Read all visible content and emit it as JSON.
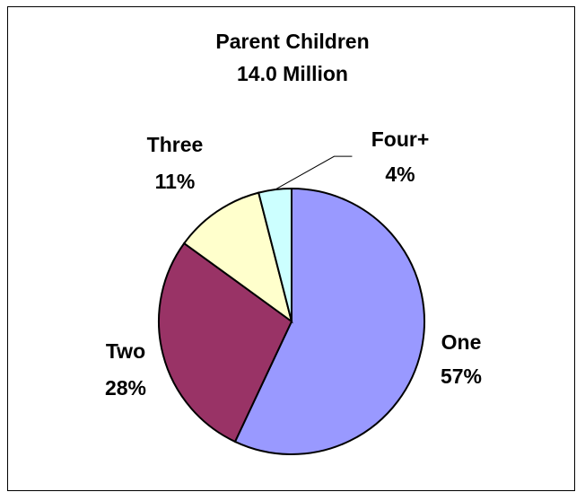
{
  "chart_data": {
    "type": "pie",
    "title": "Parent Children",
    "subtitle": "14.0 Million",
    "slices": [
      {
        "label": "One",
        "value": 57,
        "value_label": "57%",
        "color": "#9999FF"
      },
      {
        "label": "Two",
        "value": 28,
        "value_label": "28%",
        "color": "#993366"
      },
      {
        "label": "Three",
        "value": 11,
        "value_label": "11%",
        "color": "#FFFFCC"
      },
      {
        "label": "Four+",
        "value": 4,
        "value_label": "4%",
        "color": "#CCFFFF"
      }
    ],
    "start_angle_deg": 0,
    "direction": "clockwise",
    "legend": "none",
    "label_style": "outside"
  }
}
